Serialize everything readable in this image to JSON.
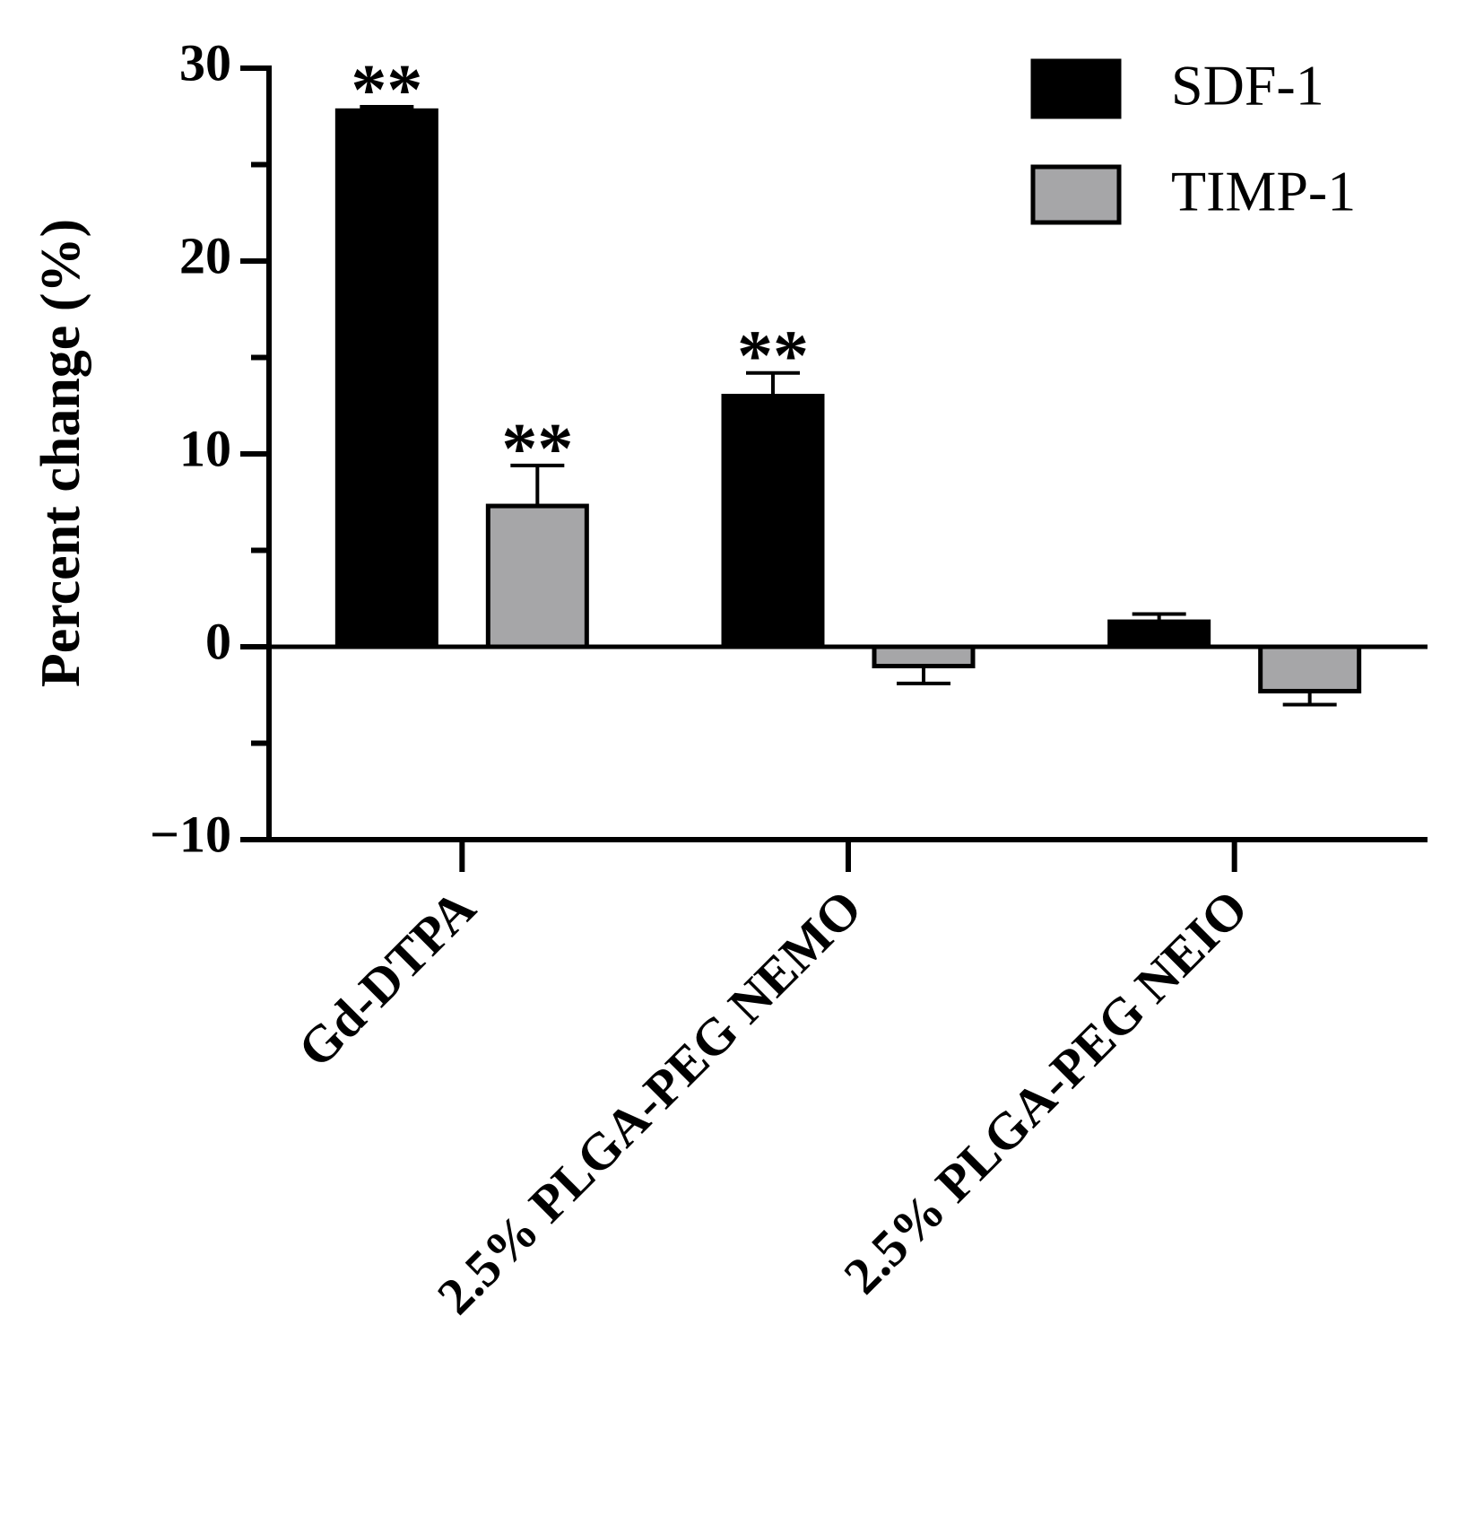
{
  "chart_data": {
    "type": "bar",
    "y_label": "Percent change (%)",
    "categories": [
      "Gd-DTPA",
      "2.5% PLGA-PEG NEMO",
      "2.5% PLGA-PEG NEIO"
    ],
    "series": [
      {
        "name": "SDF-1",
        "color": "#000000",
        "values": [
          27.8,
          13.0,
          1.3
        ],
        "errors": [
          0.2,
          1.2,
          0.4
        ],
        "annotations": [
          "**",
          "**",
          null
        ]
      },
      {
        "name": "TIMP-1",
        "color": "#a6a6a8",
        "values": [
          7.3,
          -1.0,
          -2.3
        ],
        "errors": [
          2.1,
          0.9,
          0.7
        ],
        "annotations": [
          "**",
          null,
          null
        ]
      }
    ],
    "ylim": [
      -10,
      30
    ],
    "yticks": [
      {
        "value": -10,
        "label": "−10"
      },
      0,
      10,
      20,
      30
    ],
    "yminor_ticks": [
      -5,
      5,
      15,
      25
    ],
    "legend": "top-right"
  }
}
